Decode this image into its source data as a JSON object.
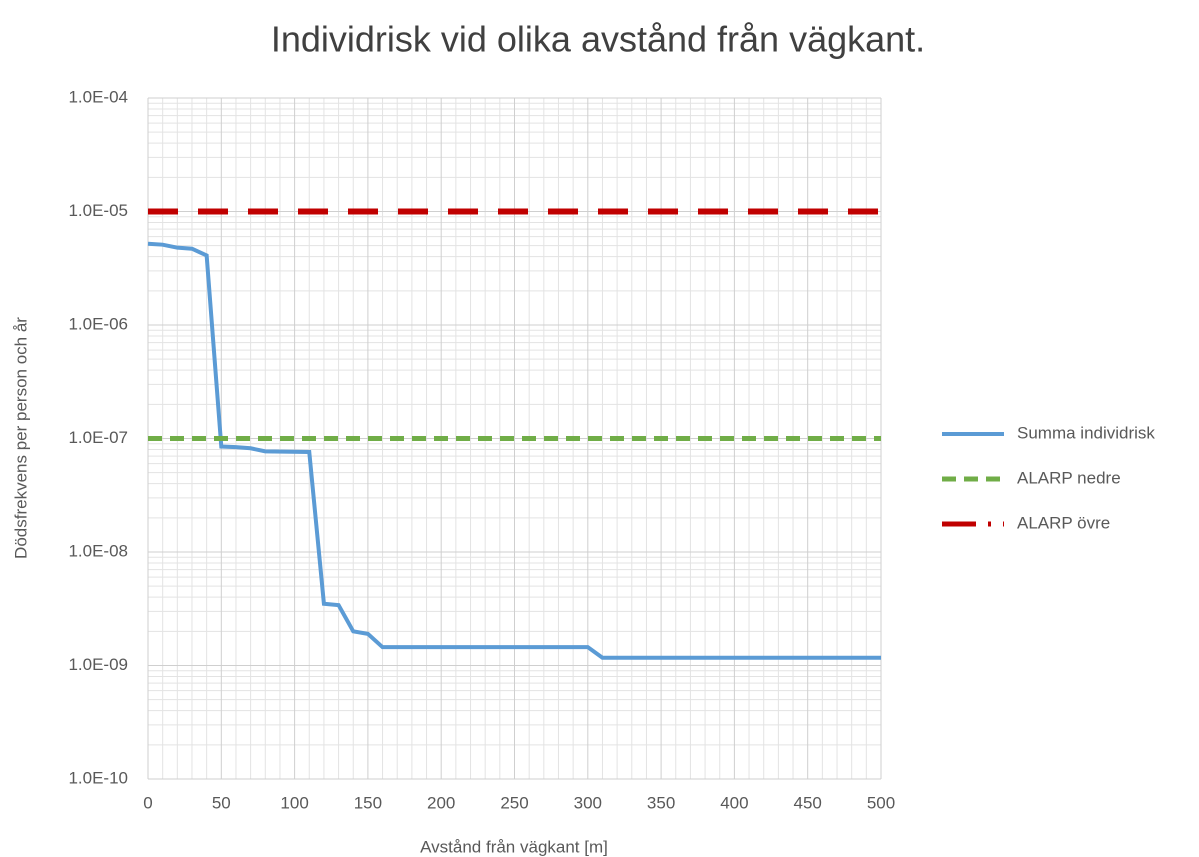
{
  "chart_data": {
    "type": "line",
    "title": "Individrisk vid olika avstånd från vägkant.",
    "x_label": "Avstånd från vägkant [m]",
    "y_label": "Dödsfrekvens per person och år",
    "log_y": true,
    "grid": true,
    "legend": "right",
    "xlim": [
      0,
      500
    ],
    "xticks": [
      0,
      50,
      100,
      150,
      200,
      250,
      300,
      350,
      400,
      450,
      500
    ],
    "ylim": [
      1e-10,
      0.0001
    ],
    "yticks": [
      {
        "value": 1e-10,
        "label": "1.0E-10"
      },
      {
        "value": 1e-09,
        "label": "1.0E-09"
      },
      {
        "value": 1e-08,
        "label": "1.0E-08"
      },
      {
        "value": 1e-07,
        "label": "1.0E-07"
      },
      {
        "value": 1e-06,
        "label": "1.0E-06"
      },
      {
        "value": 1e-05,
        "label": "1.0E-05"
      },
      {
        "value": 0.0001,
        "label": "1.0E-04"
      }
    ],
    "series": [
      {
        "name": "Summa individrisk",
        "color": "#5b9bd5",
        "dash": "solid",
        "x": [
          0,
          10,
          20,
          30,
          40,
          50,
          60,
          70,
          80,
          110,
          120,
          130,
          140,
          150,
          160,
          300,
          310,
          500
        ],
        "values": [
          5.2e-06,
          5.1e-06,
          4.8e-06,
          4.7e-06,
          4.1e-06,
          8.5e-08,
          8.4e-08,
          8.2e-08,
          7.7e-08,
          7.6e-08,
          3.5e-09,
          3.4e-09,
          2e-09,
          1.9e-09,
          1.45e-09,
          1.45e-09,
          1.17e-09,
          1.17e-09
        ]
      },
      {
        "name": "ALARP nedre",
        "color": "#70ad47",
        "dash": "dashed",
        "x": [
          0,
          500
        ],
        "values": [
          1e-07,
          1e-07
        ]
      },
      {
        "name": "ALARP övre",
        "color": "#c00000",
        "dash": "dashed",
        "x": [
          0,
          500
        ],
        "values": [
          1e-05,
          1e-05
        ]
      }
    ]
  }
}
